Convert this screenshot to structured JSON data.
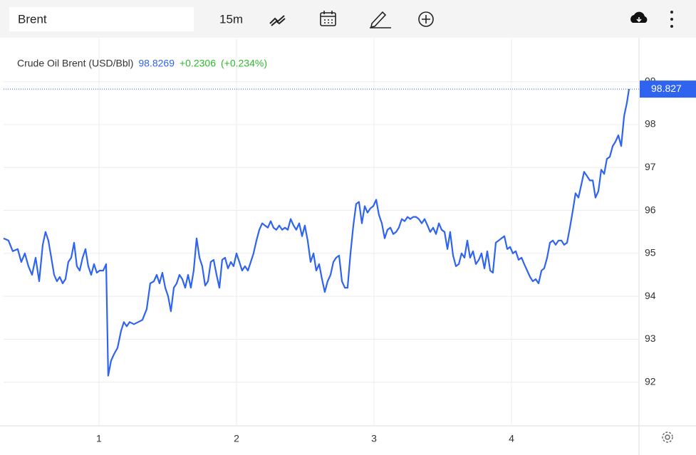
{
  "toolbar": {
    "symbol": "Brent",
    "interval": "15m"
  },
  "chart_data": {
    "type": "line",
    "title": "Crude Oil Brent (USD/Bbl)",
    "last_price": 98.8269,
    "change": {
      "value": 0.2306,
      "label": "+0.2306"
    },
    "change_pct": {
      "value": 0.234,
      "label": "(+0.234%)"
    },
    "price_tag": {
      "value": 98.8269,
      "label": "98.827"
    },
    "series": [
      {
        "name": "Crude Oil Brent (USD/Bbl)",
        "color": "#2f64f0",
        "x": [
          0.306,
          0.342,
          0.373,
          0.409,
          0.435,
          0.461,
          0.487,
          0.513,
          0.539,
          0.565,
          0.591,
          0.611,
          0.632,
          0.653,
          0.674,
          0.694,
          0.715,
          0.736,
          0.756,
          0.777,
          0.798,
          0.819,
          0.839,
          0.86,
          0.881,
          0.902,
          0.922,
          0.943,
          0.964,
          0.984,
          1.005,
          1.031,
          1.052,
          1.067,
          1.088,
          1.109,
          1.135,
          1.161,
          1.181,
          1.202,
          1.223,
          1.254,
          1.285,
          1.316,
          1.347,
          1.373,
          1.399,
          1.42,
          1.44,
          1.461,
          1.482,
          1.503,
          1.523,
          1.544,
          1.565,
          1.585,
          1.606,
          1.627,
          1.648,
          1.668,
          1.689,
          1.71,
          1.731,
          1.751,
          1.772,
          1.793,
          1.813,
          1.834,
          1.855,
          1.876,
          1.896,
          1.917,
          1.938,
          1.959,
          1.979,
          2.0,
          2.021,
          2.041,
          2.062,
          2.083,
          2.104,
          2.124,
          2.145,
          2.166,
          2.187,
          2.207,
          2.228,
          2.249,
          2.269,
          2.29,
          2.311,
          2.332,
          2.352,
          2.373,
          2.394,
          2.415,
          2.435,
          2.456,
          2.477,
          2.497,
          2.518,
          2.539,
          2.56,
          2.58,
          2.601,
          2.622,
          2.642,
          2.663,
          2.684,
          2.705,
          2.725,
          2.746,
          2.767,
          2.788,
          2.808,
          2.829,
          2.85,
          2.87,
          2.891,
          2.912,
          2.933,
          2.953,
          2.974,
          2.995,
          3.016,
          3.036,
          3.057,
          3.078,
          3.098,
          3.119,
          3.14,
          3.161,
          3.181,
          3.202,
          3.223,
          3.244,
          3.264,
          3.285,
          3.306,
          3.326,
          3.347,
          3.368,
          3.389,
          3.409,
          3.43,
          3.451,
          3.472,
          3.492,
          3.513,
          3.534,
          3.554,
          3.575,
          3.596,
          3.617,
          3.637,
          3.658,
          3.679,
          3.699,
          3.72,
          3.741,
          3.762,
          3.782,
          3.803,
          3.824,
          3.845,
          3.865,
          3.886,
          3.907,
          3.927,
          3.948,
          3.969,
          3.99,
          4.01,
          4.031,
          4.052,
          4.073,
          4.093,
          4.114,
          4.135,
          4.155,
          4.176,
          4.197,
          4.218,
          4.238,
          4.259,
          4.28,
          4.301,
          4.321,
          4.342,
          4.363,
          4.383,
          4.404,
          4.425,
          4.446,
          4.466,
          4.487,
          4.508,
          4.528,
          4.549,
          4.57,
          4.591,
          4.611,
          4.632,
          4.653,
          4.674,
          4.694,
          4.715,
          4.736,
          4.756,
          4.777,
          4.798,
          4.819,
          4.839,
          4.855
        ],
        "values": [
          95.35,
          95.3,
          95.05,
          95.1,
          94.8,
          95.0,
          94.7,
          94.5,
          94.9,
          94.35,
          95.2,
          95.5,
          95.3,
          94.9,
          94.5,
          94.35,
          94.45,
          94.3,
          94.4,
          94.8,
          94.9,
          95.25,
          94.7,
          94.6,
          94.9,
          95.1,
          94.7,
          94.5,
          94.75,
          94.55,
          94.6,
          94.6,
          94.75,
          92.15,
          92.5,
          92.65,
          92.8,
          93.2,
          93.4,
          93.3,
          93.4,
          93.35,
          93.4,
          93.45,
          93.7,
          94.3,
          94.35,
          94.5,
          94.3,
          94.55,
          94.2,
          94.0,
          93.65,
          94.2,
          94.3,
          94.5,
          94.4,
          94.2,
          94.5,
          94.2,
          94.6,
          95.35,
          94.9,
          94.7,
          94.25,
          94.35,
          94.8,
          94.85,
          94.5,
          94.2,
          94.85,
          94.9,
          94.65,
          94.8,
          94.7,
          95.0,
          94.8,
          94.6,
          94.7,
          94.6,
          94.8,
          95.0,
          95.3,
          95.55,
          95.7,
          95.65,
          95.6,
          95.75,
          95.6,
          95.55,
          95.65,
          95.55,
          95.6,
          95.55,
          95.8,
          95.65,
          95.55,
          95.7,
          95.4,
          95.65,
          95.3,
          94.8,
          95.0,
          94.6,
          94.75,
          94.4,
          94.1,
          94.35,
          94.5,
          94.8,
          94.9,
          94.95,
          94.35,
          94.2,
          94.2,
          95.0,
          95.65,
          96.15,
          96.2,
          95.7,
          96.1,
          95.95,
          96.05,
          96.1,
          96.25,
          95.9,
          95.7,
          95.35,
          95.55,
          95.6,
          95.45,
          95.5,
          95.6,
          95.8,
          95.75,
          95.85,
          95.8,
          95.85,
          95.85,
          95.8,
          95.7,
          95.8,
          95.65,
          95.5,
          95.6,
          95.45,
          95.7,
          95.55,
          95.5,
          95.1,
          95.5,
          94.95,
          94.7,
          94.75,
          95.0,
          94.9,
          95.3,
          94.9,
          95.05,
          94.75,
          94.85,
          95.0,
          94.65,
          95.05,
          94.6,
          94.55,
          95.25,
          95.3,
          95.35,
          95.4,
          95.1,
          95.15,
          95.0,
          95.05,
          94.85,
          94.9,
          94.75,
          94.6,
          94.45,
          94.35,
          94.4,
          94.3,
          94.6,
          94.65,
          94.9,
          95.25,
          95.3,
          95.2,
          95.3,
          95.3,
          95.2,
          95.25,
          95.6,
          96.0,
          96.4,
          96.3,
          96.6,
          96.9,
          96.8,
          96.7,
          96.7,
          96.3,
          96.45,
          96.95,
          96.85,
          97.2,
          97.25,
          97.5,
          97.6,
          97.75,
          97.5,
          98.2,
          98.5,
          98.8269
        ]
      }
    ],
    "xlim": [
      0.306,
      4.93
    ],
    "xticks": [
      1,
      2,
      3,
      4
    ],
    "ylim": [
      91,
      100
    ],
    "yticks": [
      92,
      93,
      94,
      95,
      96,
      97,
      98,
      99
    ],
    "grid": true
  }
}
